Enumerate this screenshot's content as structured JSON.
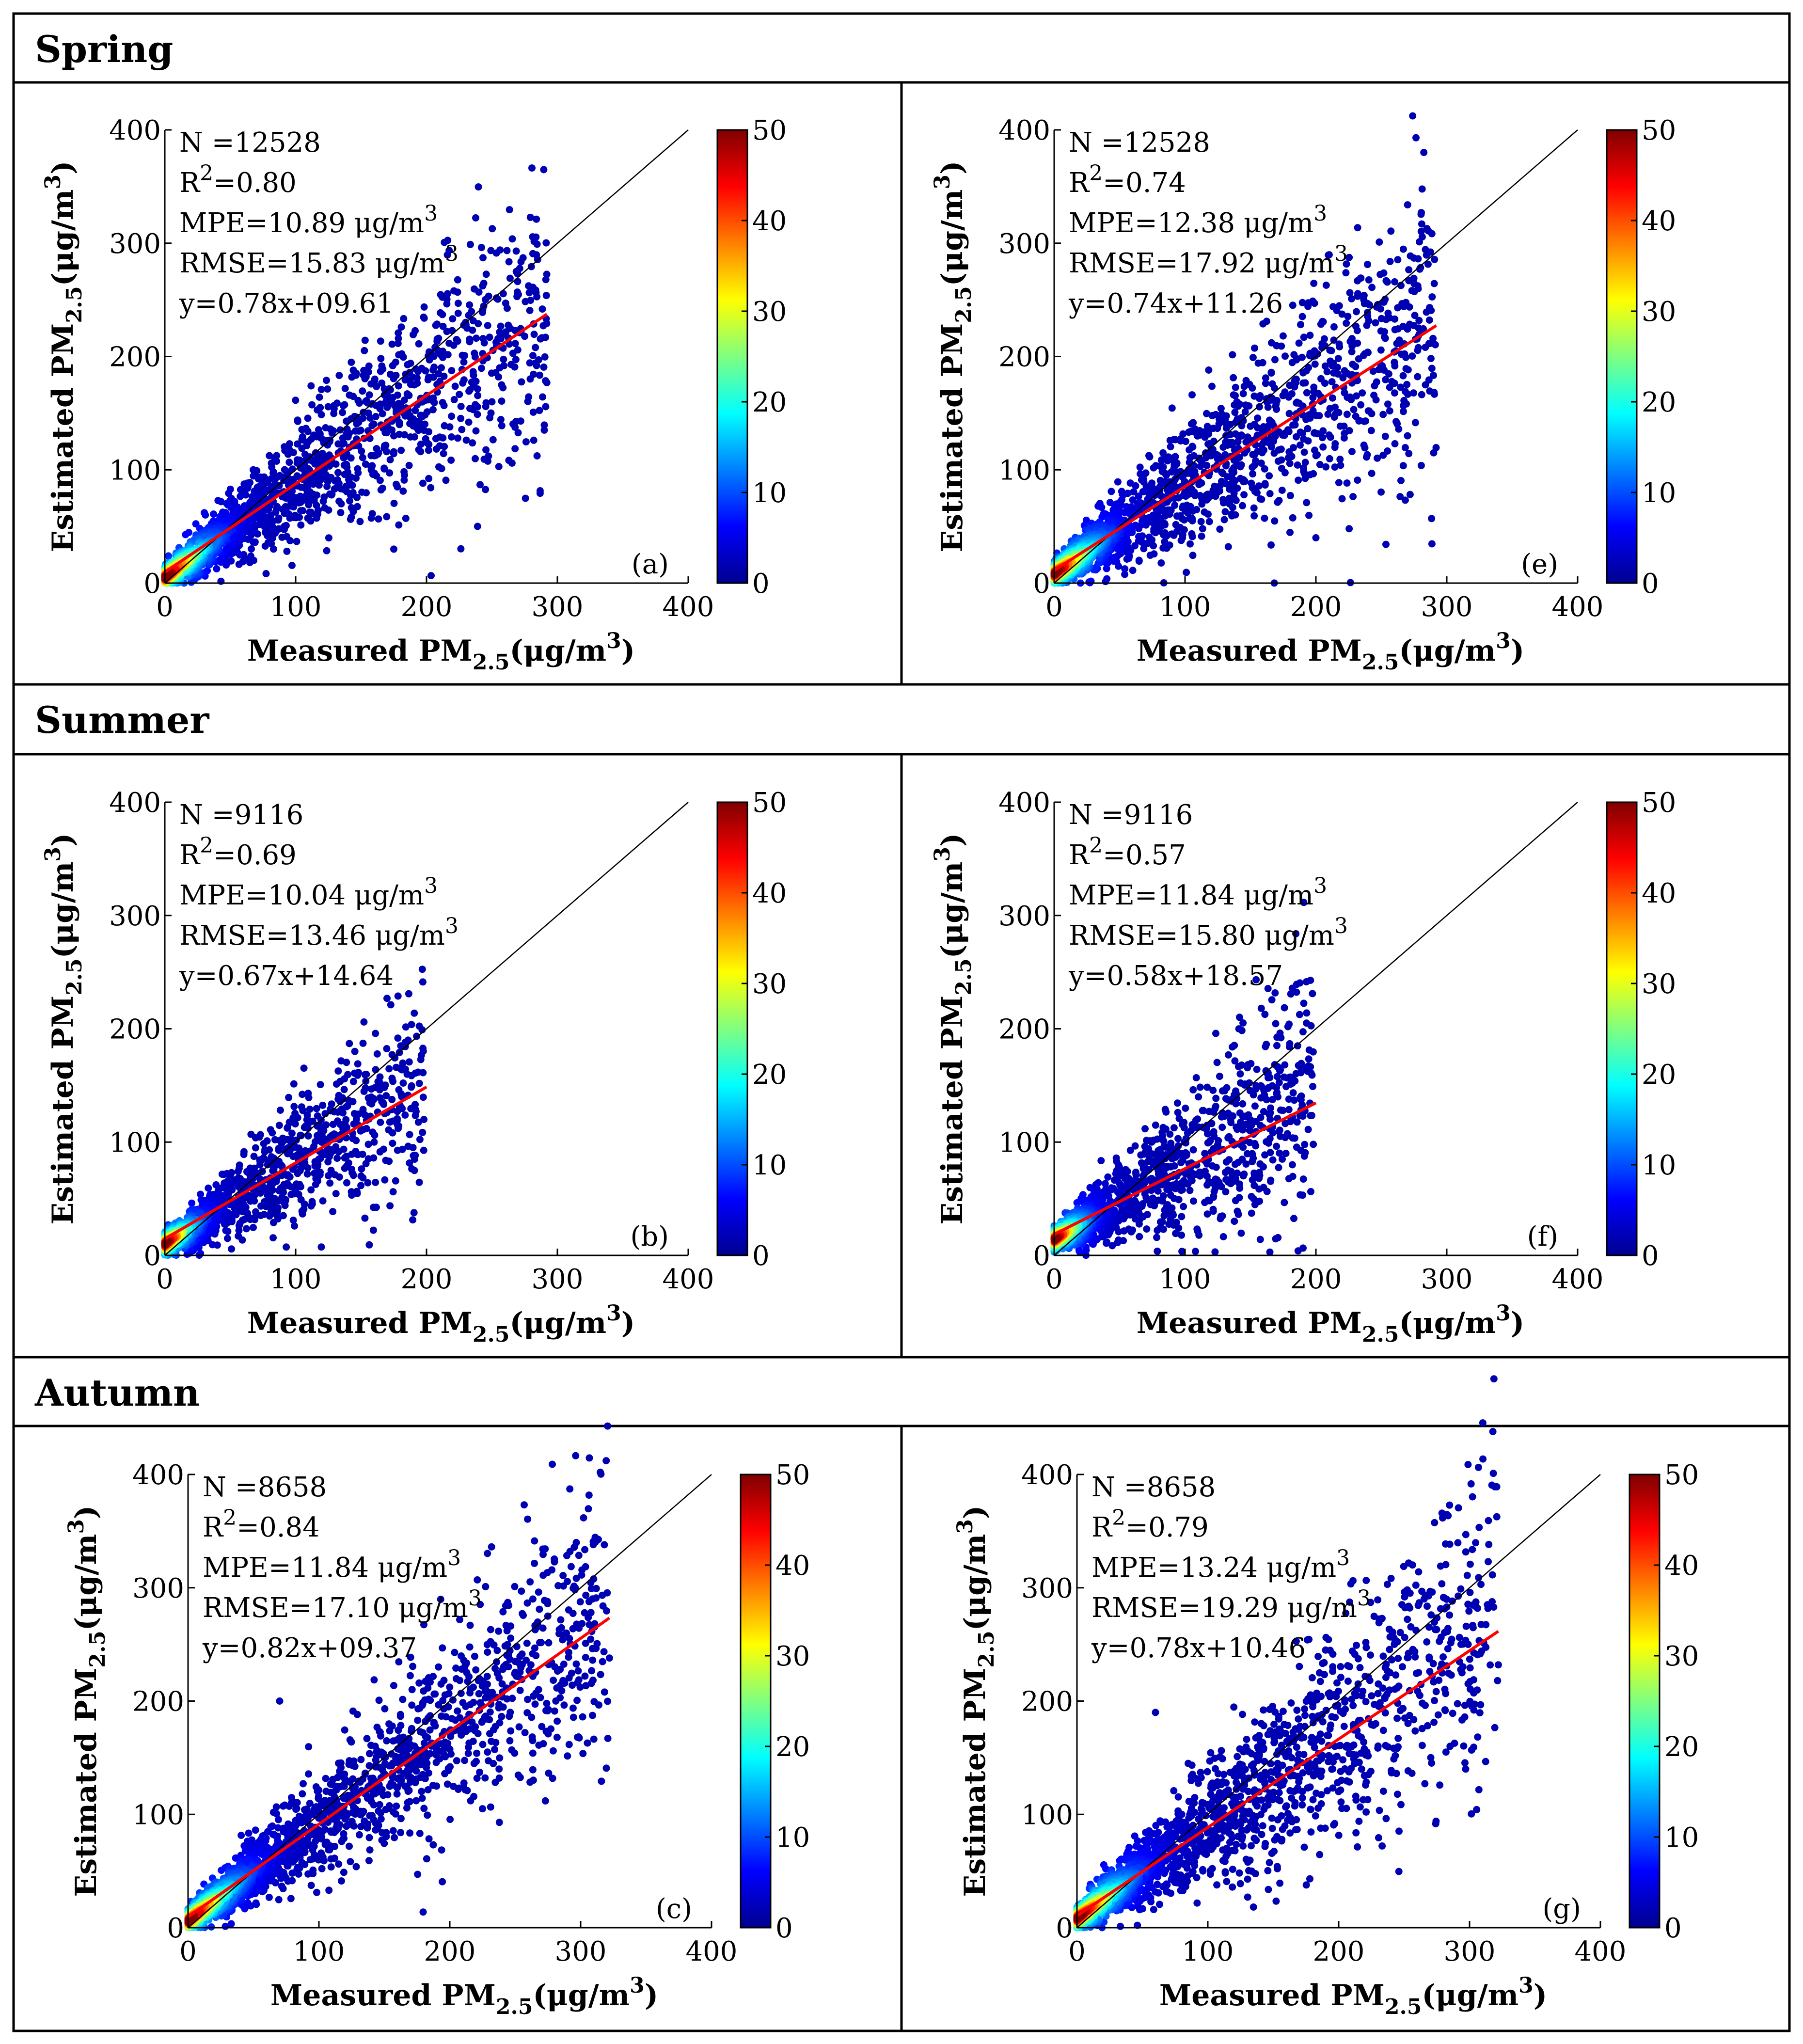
{
  "figure": {
    "sections": [
      "Spring",
      "Summer",
      "Autumn"
    ]
  },
  "colorbar": {
    "ticks": [
      "0",
      "10",
      "20",
      "30",
      "40",
      "50"
    ],
    "colors": [
      "#00008f",
      "#0000ff",
      "#0080ff",
      "#00ffff",
      "#80ff80",
      "#ffff00",
      "#ff8000",
      "#ff0000",
      "#800000"
    ]
  },
  "colors": {
    "fit_line": "#ff0000",
    "identity_line": "#000000",
    "frame": "#000000"
  },
  "axes": {
    "x_label": {
      "main": "Measured PM",
      "sub": "2.5",
      "unit": "(μg/m",
      "sup": "3",
      "close": ")"
    },
    "y_label": {
      "main": "Estimated PM",
      "sub": "2.5",
      "unit": "(μg/m",
      "sup": "3",
      "close": ")"
    },
    "ticks": [
      "0",
      "100",
      "200",
      "300",
      "400"
    ]
  },
  "chart_data": [
    {
      "type": "scatter",
      "panel": "(a)",
      "season": "Spring",
      "xlim": [
        0,
        400
      ],
      "ylim": [
        0,
        400
      ],
      "stats": {
        "n": "N =12528",
        "r2": "0.80",
        "mpe": "MPE=10.89 μg/m",
        "rmse": "RMSE=15.83 μg/m",
        "eq": "y=0.78x+09.61"
      },
      "fit": {
        "slope": 0.78,
        "intercept": 9.61,
        "x_end": 292
      },
      "cloud": {
        "n": 1900,
        "x_max": 292,
        "slope": 0.82,
        "intercept": 5,
        "spread": 0.28,
        "outliers": [
          [
            290,
            135
          ],
          [
            272,
            143
          ],
          [
            255,
            182
          ],
          [
            250,
            160
          ],
          [
            175,
            30
          ],
          [
            205,
            188
          ]
        ]
      }
    },
    {
      "type": "scatter",
      "panel": "(e)",
      "season": "Spring",
      "xlim": [
        0,
        400
      ],
      "ylim": [
        0,
        400
      ],
      "stats": {
        "n": "N =12528",
        "r2": "0.74",
        "mpe": "MPE=12.38 μg/m",
        "rmse": "RMSE=17.92 μg/m",
        "eq": "y=0.74x+11.26"
      },
      "fit": {
        "slope": 0.74,
        "intercept": 11.26,
        "x_end": 292
      },
      "cloud": {
        "n": 1900,
        "x_max": 292,
        "slope": 0.78,
        "intercept": 8,
        "spread": 0.32,
        "outliers": [
          [
            290,
            115
          ],
          [
            270,
            130
          ],
          [
            255,
            158
          ],
          [
            200,
            40
          ],
          [
            185,
            180
          ]
        ]
      }
    },
    {
      "type": "scatter",
      "panel": "(b)",
      "season": "Summer",
      "xlim": [
        0,
        400
      ],
      "ylim": [
        0,
        400
      ],
      "stats": {
        "n": "N =9116",
        "r2": "0.69",
        "mpe": "MPE=10.04 μg/m",
        "rmse": "RMSE=13.46 μg/m",
        "eq": "y=0.67x+14.64"
      },
      "fit": {
        "slope": 0.67,
        "intercept": 14.64,
        "x_end": 200
      },
      "cloud": {
        "n": 1300,
        "x_max": 198,
        "slope": 0.72,
        "intercept": 10,
        "spread": 0.3,
        "outliers": [
          [
            198,
            120
          ],
          [
            190,
            88
          ],
          [
            160,
            100
          ],
          [
            150,
            70
          ]
        ]
      }
    },
    {
      "type": "scatter",
      "panel": "(f)",
      "season": "Summer",
      "xlim": [
        0,
        400
      ],
      "ylim": [
        0,
        400
      ],
      "stats": {
        "n": "N =9116",
        "r2": "0.57",
        "mpe": "MPE=11.84 μg/m",
        "rmse": "RMSE=15.80 μg/m",
        "eq": "y=0.58x+18.57"
      },
      "fit": {
        "slope": 0.58,
        "intercept": 18.57,
        "x_end": 200
      },
      "cloud": {
        "n": 1300,
        "x_max": 198,
        "slope": 0.65,
        "intercept": 14,
        "spread": 0.36,
        "outliers": [
          [
            198,
            98
          ],
          [
            182,
            80
          ],
          [
            160,
            60
          ],
          [
            150,
            110
          ]
        ]
      }
    },
    {
      "type": "scatter",
      "panel": "(c)",
      "season": "Autumn",
      "xlim": [
        0,
        400
      ],
      "ylim": [
        0,
        400
      ],
      "stats": {
        "n": "N =8658",
        "r2": "0.84",
        "mpe": "MPE=11.84 μg/m",
        "rmse": "RMSE=17.10 μg/m",
        "eq": "y=0.82x+09.37"
      },
      "fit": {
        "slope": 0.82,
        "intercept": 9.37,
        "x_end": 322
      },
      "cloud": {
        "n": 2000,
        "x_max": 322,
        "slope": 0.86,
        "intercept": 6,
        "spread": 0.26,
        "outliers": [
          [
            322,
            238
          ],
          [
            282,
            168
          ],
          [
            262,
            232
          ],
          [
            250,
            235
          ],
          [
            70,
            200
          ]
        ]
      }
    },
    {
      "type": "scatter",
      "panel": "(g)",
      "season": "Autumn",
      "xlim": [
        0,
        400
      ],
      "ylim": [
        0,
        400
      ],
      "stats": {
        "n": "N =8658",
        "r2": "0.79",
        "mpe": "MPE=13.24 μg/m",
        "rmse": "RMSE=19.29 μg/m",
        "eq": "y=0.78x+10.46"
      },
      "fit": {
        "slope": 0.78,
        "intercept": 10.46,
        "x_end": 322
      },
      "cloud": {
        "n": 2000,
        "x_max": 322,
        "slope": 0.84,
        "intercept": 8,
        "spread": 0.3,
        "outliers": [
          [
            322,
            232
          ],
          [
            282,
            155
          ],
          [
            262,
            205
          ],
          [
            190,
            245
          ],
          [
            60,
            190
          ]
        ]
      }
    }
  ]
}
